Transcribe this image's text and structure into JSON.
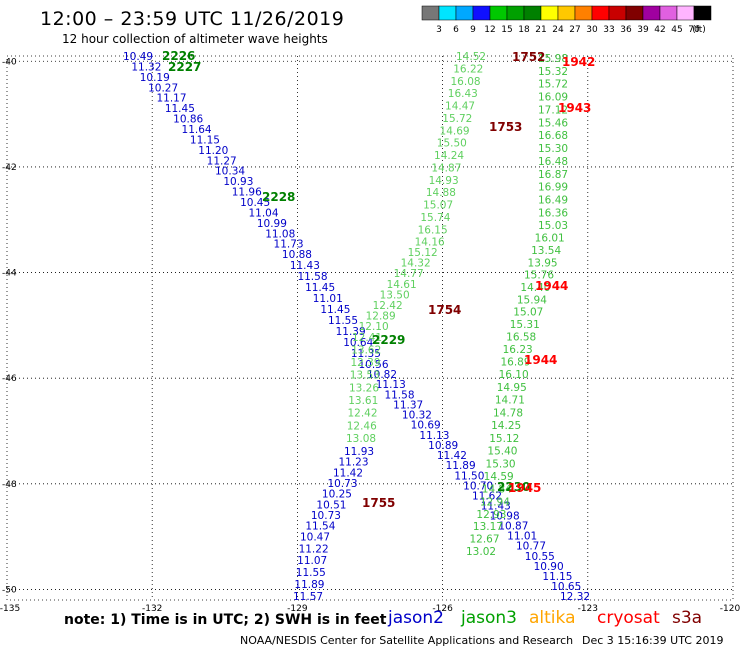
{
  "header": {
    "title": "12:00 – 23:59 UTC 11/26/2019",
    "subtitle": "12 hour collection of altimeter wave heights"
  },
  "colorbar": {
    "ticks": [
      "3",
      "6",
      "9",
      "12",
      "15",
      "18",
      "21",
      "24",
      "27",
      "30",
      "33",
      "36",
      "39",
      "42",
      "45",
      "70"
    ],
    "unit": "(ft)",
    "colors": [
      "#777777",
      "#00e5ff",
      "#00a8ff",
      "#1010ff",
      "#00c800",
      "#00a000",
      "#008000",
      "#ffff00",
      "#ffc800",
      "#ff8000",
      "#ff0000",
      "#c80000",
      "#800000",
      "#a000a0",
      "#e060e0",
      "#ffb4ff",
      "#000000"
    ]
  },
  "axes": {
    "lat_labels": [
      "-40",
      "-42",
      "-44",
      "-46",
      "-48",
      "-50"
    ],
    "lon_labels": [
      "-135",
      "-132",
      "-129",
      "-126",
      "-123",
      "-120"
    ]
  },
  "map": {
    "lon_range": [
      -135,
      -120
    ],
    "lat_range": [
      -50.2,
      -39.9
    ],
    "grid": true,
    "satellite_colors": {
      "jason2": "#0000c8",
      "jason3_dark": "#008000",
      "jason3_light": "#60d060",
      "s3a_dark": "#800000",
      "s3a_red": "#ff0000"
    },
    "tracks": [
      {
        "id": "jason2-a",
        "color": "#0000c8",
        "values": [
          "10.49",
          "11.32",
          "10.19",
          "10.27",
          "11.17",
          "11.45",
          "10.86",
          "11.64",
          "11.15",
          "11.20",
          "11.27",
          "10.34",
          "10.93",
          "11.96",
          "10.45",
          "11.04",
          "10.99",
          "11.08",
          "11.73",
          "10.88",
          "11.43",
          "11.58",
          "11.45",
          "11.01",
          "11.45",
          "11.55",
          "11.39",
          "10.64",
          "11.35",
          "10.56",
          "10.82",
          "11.13",
          "11.58",
          "11.37",
          "10.32",
          "10.69",
          "11.13",
          "10.89",
          "11.42",
          "11.89",
          "11.50",
          "10.70",
          "11.62",
          "11.43",
          "10.98",
          "10.87",
          "11.01",
          "10.77",
          "10.55",
          "10.90",
          "11.15",
          "10.65",
          "12.32"
        ]
      },
      {
        "id": "jason2-b",
        "color": "#0000c8",
        "values": [
          "11.93",
          "11.23",
          "11.42",
          "10.73",
          "10.25",
          "10.51",
          "10.73",
          "11.54",
          "10.47",
          "11.22",
          "11.07",
          "11.55",
          "11.89",
          "11.57"
        ]
      },
      {
        "id": "jason3-a",
        "color": "#60d060",
        "values": [
          "14.52",
          "16.22",
          "16.08",
          "16.43",
          "14.47",
          "15.72",
          "14.69",
          "15.50",
          "14.24",
          "14.87",
          "14.93",
          "14.88",
          "15.07",
          "15.74",
          "16.15",
          "14.16",
          "15.12",
          "14.32",
          "14.77",
          "14.61",
          "13.50",
          "12.42",
          "12.89",
          "12.10",
          "12.41",
          "13.62",
          "12.39",
          "13.53",
          "13.26",
          "13.61",
          "12.42",
          "12.46",
          "13.08"
        ]
      },
      {
        "id": "jason3-b",
        "color": "#00a000",
        "values": [
          "15.98",
          "15.32",
          "15.72",
          "16.09",
          "17.12",
          "15.46",
          "16.68",
          "15.30",
          "16.48",
          "16.87",
          "16.99",
          "16.49",
          "16.36",
          "15.03",
          "16.01",
          "13.54",
          "13.95",
          "15.76",
          "14.40",
          "15.94",
          "15.07",
          "15.31",
          "16.58",
          "16.23",
          "16.89",
          "16.10",
          "14.95",
          "14.71",
          "14.78",
          "14.25",
          "15.12",
          "15.40",
          "15.30",
          "14.59",
          "14.84",
          "12.94",
          "12.93",
          "13.17",
          "12.67",
          "13.02"
        ]
      },
      {
        "id": "time-labels",
        "values": [
          "2226",
          "2227",
          "2228",
          "2229",
          "2230",
          "1752",
          "1753",
          "1754",
          "1755",
          "1942",
          "1943",
          "1944",
          "1944",
          "1945"
        ]
      }
    ]
  },
  "note": "note: 1) Time is in UTC; 2) SWH is in feet",
  "legend": {
    "jason2": "jason2",
    "jason3": "jason3",
    "altika": "altika",
    "cryosat": "cryosat",
    "s3a": "s3a"
  },
  "footer": {
    "center": "NOAA/NESDIS Center for Satellite Applications and Research",
    "timestamp": "Dec  3 15:16:39 UTC 2019"
  }
}
